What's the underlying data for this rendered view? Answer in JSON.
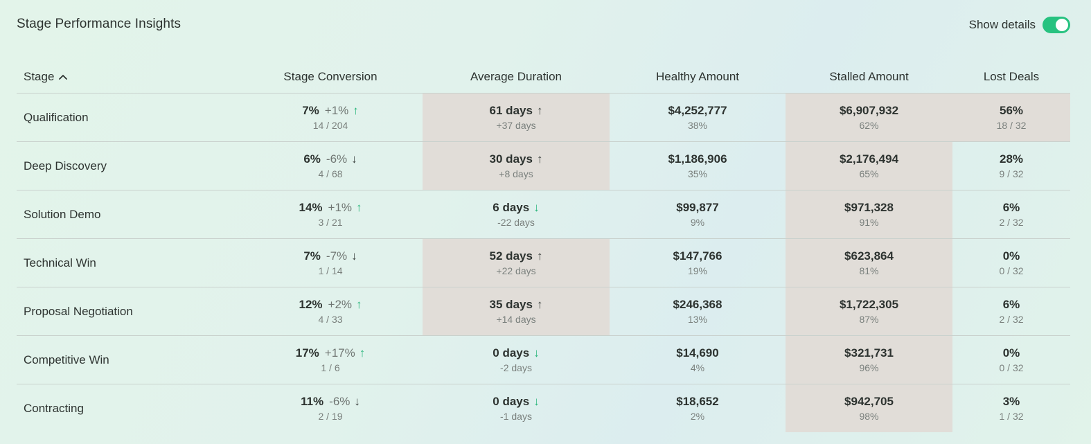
{
  "header": {
    "title": "Stage Performance Insights",
    "toggle_label": "Show details",
    "toggle_on": true,
    "accent_color": "#27c280"
  },
  "columns": {
    "stage": "Stage",
    "conversion": "Stage Conversion",
    "duration": "Average Duration",
    "healthy": "Healthy Amount",
    "stalled": "Stalled Amount",
    "lost": "Lost Deals"
  },
  "rows": [
    {
      "stage": "Qualification",
      "conversion": {
        "pct": "7%",
        "delta": "+1%",
        "arrow": "↑",
        "trend": "up",
        "ratio": "14 / 204"
      },
      "duration": {
        "value": "61 days",
        "arrow": "↑",
        "trend": "up",
        "delta": "+37 days",
        "highlight": true
      },
      "healthy": {
        "amount": "$4,252,777",
        "pct": "38%"
      },
      "stalled": {
        "amount": "$6,907,932",
        "pct": "62%",
        "highlight": true
      },
      "lost": {
        "pct": "56%",
        "ratio": "18 / 32",
        "highlight": true
      }
    },
    {
      "stage": "Deep Discovery",
      "conversion": {
        "pct": "6%",
        "delta": "-6%",
        "arrow": "↓",
        "trend": "down",
        "ratio": "4 / 68"
      },
      "duration": {
        "value": "30 days",
        "arrow": "↑",
        "trend": "up",
        "delta": "+8 days",
        "highlight": true
      },
      "healthy": {
        "amount": "$1,186,906",
        "pct": "35%"
      },
      "stalled": {
        "amount": "$2,176,494",
        "pct": "65%",
        "highlight": true
      },
      "lost": {
        "pct": "28%",
        "ratio": "9 / 32",
        "highlight": false
      }
    },
    {
      "stage": "Solution Demo",
      "conversion": {
        "pct": "14%",
        "delta": "+1%",
        "arrow": "↑",
        "trend": "up",
        "ratio": "3 / 21"
      },
      "duration": {
        "value": "6 days",
        "arrow": "↓",
        "trend": "down",
        "delta": "-22 days",
        "highlight": false
      },
      "healthy": {
        "amount": "$99,877",
        "pct": "9%"
      },
      "stalled": {
        "amount": "$971,328",
        "pct": "91%",
        "highlight": true
      },
      "lost": {
        "pct": "6%",
        "ratio": "2 / 32",
        "highlight": false
      }
    },
    {
      "stage": "Technical Win",
      "conversion": {
        "pct": "7%",
        "delta": "-7%",
        "arrow": "↓",
        "trend": "down",
        "ratio": "1 / 14"
      },
      "duration": {
        "value": "52 days",
        "arrow": "↑",
        "trend": "up",
        "delta": "+22 days",
        "highlight": true
      },
      "healthy": {
        "amount": "$147,766",
        "pct": "19%"
      },
      "stalled": {
        "amount": "$623,864",
        "pct": "81%",
        "highlight": true
      },
      "lost": {
        "pct": "0%",
        "ratio": "0 / 32",
        "highlight": false
      }
    },
    {
      "stage": "Proposal Negotiation",
      "conversion": {
        "pct": "12%",
        "delta": "+2%",
        "arrow": "↑",
        "trend": "up",
        "ratio": "4 / 33"
      },
      "duration": {
        "value": "35 days",
        "arrow": "↑",
        "trend": "up",
        "delta": "+14 days",
        "highlight": true
      },
      "healthy": {
        "amount": "$246,368",
        "pct": "13%"
      },
      "stalled": {
        "amount": "$1,722,305",
        "pct": "87%",
        "highlight": true
      },
      "lost": {
        "pct": "6%",
        "ratio": "2 / 32",
        "highlight": false
      }
    },
    {
      "stage": "Competitive Win",
      "conversion": {
        "pct": "17%",
        "delta": "+17%",
        "arrow": "↑",
        "trend": "up",
        "ratio": "1 / 6"
      },
      "duration": {
        "value": "0 days",
        "arrow": "↓",
        "trend": "down",
        "delta": "-2 days",
        "highlight": false
      },
      "healthy": {
        "amount": "$14,690",
        "pct": "4%"
      },
      "stalled": {
        "amount": "$321,731",
        "pct": "96%",
        "highlight": true
      },
      "lost": {
        "pct": "0%",
        "ratio": "0 / 32",
        "highlight": false
      }
    },
    {
      "stage": "Contracting",
      "conversion": {
        "pct": "11%",
        "delta": "-6%",
        "arrow": "↓",
        "trend": "down",
        "ratio": "2 / 19"
      },
      "duration": {
        "value": "0 days",
        "arrow": "↓",
        "trend": "down",
        "delta": "-1 days",
        "highlight": false
      },
      "healthy": {
        "amount": "$18,652",
        "pct": "2%"
      },
      "stalled": {
        "amount": "$942,705",
        "pct": "98%",
        "highlight": true
      },
      "lost": {
        "pct": "3%",
        "ratio": "1 / 32",
        "highlight": false
      }
    }
  ]
}
